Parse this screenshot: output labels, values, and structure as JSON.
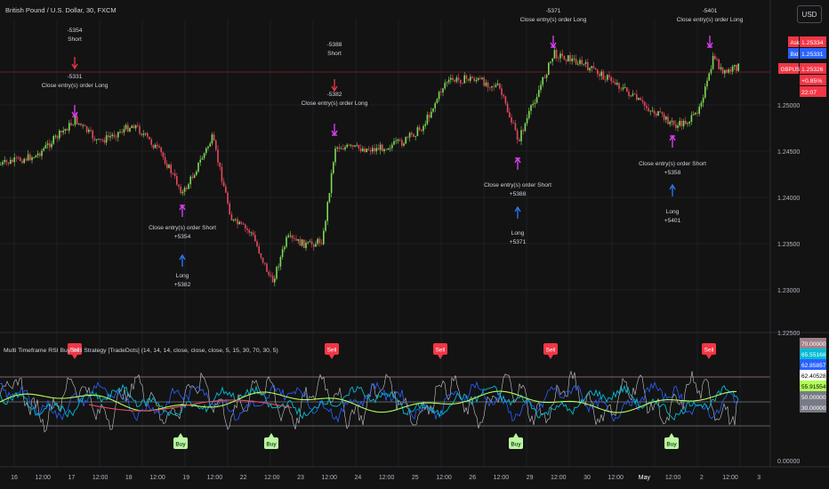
{
  "header": {
    "symbol_title": "British Pound / U.S. Dollar, 30, FXCM",
    "currency_button": "USD"
  },
  "price_axis": {
    "ticks": [
      "1.25000",
      "1.24500",
      "1.24000",
      "1.23500",
      "1.23000",
      "1.22500"
    ],
    "badges": [
      {
        "tag": "Ask",
        "value": "1.25334",
        "color": "#f23645"
      },
      {
        "tag": "Bid",
        "value": "1.25331",
        "color": "#2962ff"
      },
      {
        "tag": "GBPUSD",
        "value": "1.25326",
        "color": "#f23645"
      },
      {
        "tag": "",
        "value": "+0.85%",
        "color": "#f23645"
      },
      {
        "tag": "",
        "value": "22:07",
        "color": "#f23645"
      }
    ]
  },
  "trade_labels": [
    {
      "lines": [
        "-5354",
        "Short"
      ],
      "arrow": "down-red"
    },
    {
      "lines": [
        "-5331",
        "Close entry(s) order Long"
      ],
      "arrow": "down-magenta"
    },
    {
      "lines": [
        "Close entry(s) order Short",
        "+5354"
      ],
      "arrow": "up-magenta"
    },
    {
      "lines": [
        "Long",
        "+5382"
      ],
      "arrow": "up-blue"
    },
    {
      "lines": [
        "-5388",
        "Short"
      ],
      "arrow": "down-red"
    },
    {
      "lines": [
        "-5382",
        "Close entry(s) order Long"
      ],
      "arrow": "down-magenta"
    },
    {
      "lines": [
        "Close entry(s) order Short",
        "+5388"
      ],
      "arrow": "up-magenta"
    },
    {
      "lines": [
        "Long",
        "+5371"
      ],
      "arrow": "up-blue"
    },
    {
      "lines": [
        "-5371",
        "Close entry(s) order Long"
      ],
      "arrow": "down-magenta"
    },
    {
      "lines": [
        "Close entry(s) order Short",
        "+5358"
      ],
      "arrow": "up-magenta"
    },
    {
      "lines": [
        "Long",
        "+5401"
      ],
      "arrow": "up-blue"
    },
    {
      "lines": [
        "-5401",
        "Close entry(s) order Long"
      ],
      "arrow": "down-magenta"
    }
  ],
  "indicator": {
    "title": "Multi Timeframe RSI Buy Sell Strategy [TradeDots] (14, 14, 14, close, close, close, 5, 15, 30, 70, 30, 5)",
    "ticks": [
      "0.00000"
    ],
    "badges": [
      {
        "value": "70.00000",
        "color": "#a0828a"
      },
      {
        "value": "65.55168",
        "color": "#00bcd4"
      },
      {
        "value": "62.85857",
        "color": "#2962ff"
      },
      {
        "value": "62.40528",
        "color": "#ffffff"
      },
      {
        "value": "55.91554",
        "color": "#b2ff59"
      },
      {
        "value": "50.00000",
        "color": "#787b86"
      },
      {
        "value": "30.00000",
        "color": "#787b86"
      }
    ],
    "sell_label": "Sell",
    "buy_label": "Buy"
  },
  "time_axis": {
    "labels": [
      "16",
      "12:00",
      "17",
      "12:00",
      "18",
      "12:00",
      "19",
      "12:00",
      "22",
      "12:00",
      "23",
      "12:00",
      "24",
      "12:00",
      "25",
      "12:00",
      "26",
      "12:00",
      "29",
      "12:00",
      "30",
      "12:00",
      "May",
      "12:00",
      "2",
      "12:00",
      "3"
    ]
  },
  "chart_data": {
    "type": "candlestick",
    "timeframe": "30",
    "y_range": [
      1.2275,
      1.2545
    ],
    "indicator_levels": [
      70,
      50,
      30
    ]
  }
}
